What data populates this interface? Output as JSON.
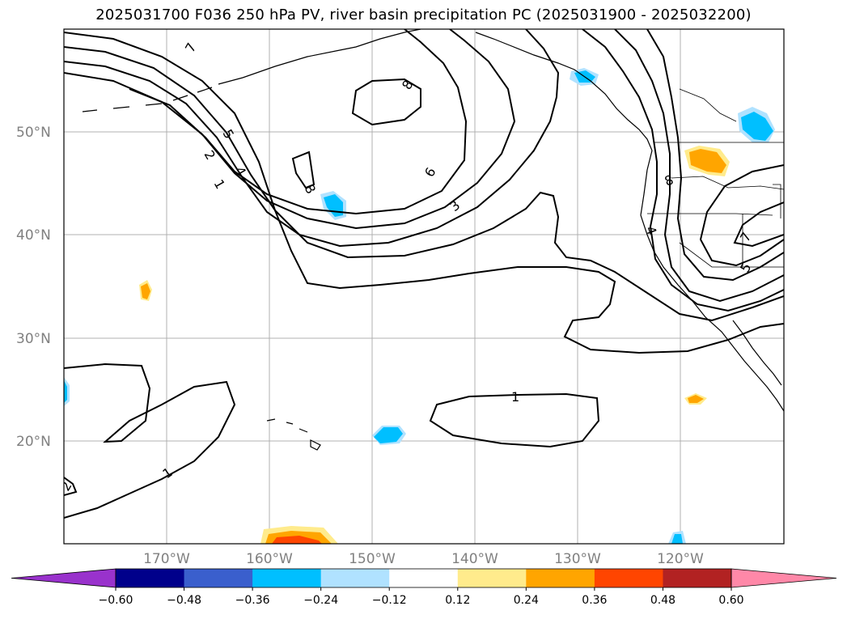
{
  "title": "2025031700 F036 250 hPa PV, river basin precipitation PC (2025031900 - 2025032200)",
  "map": {
    "region": "North Pacific / western North America",
    "lon_range": [
      -180,
      -110
    ],
    "lat_range": [
      10,
      60
    ],
    "lat_ticks": [
      "50°N",
      "40°N",
      "30°N",
      "20°N"
    ],
    "lon_ticks": [
      "170°W",
      "160°W",
      "150°W",
      "140°W",
      "130°W",
      "120°W"
    ],
    "contour_labels": [
      "7",
      "5",
      "2",
      "4",
      "1",
      "8",
      "8",
      "6",
      "3",
      "8",
      "4",
      "7",
      "5",
      "1",
      "1",
      "2"
    ]
  },
  "colorbar": {
    "ticks": [
      "−0.60",
      "−0.48",
      "−0.36",
      "−0.24",
      "−0.12",
      "0.12",
      "0.24",
      "0.36",
      "0.48",
      "0.60"
    ],
    "colors": [
      "#9932cc",
      "#00008b",
      "#3a5fcd",
      "#00bfff",
      "#b0e2ff",
      "#ffffff",
      "#ffeb8c",
      "#ffa500",
      "#ff4500",
      "#b22222",
      "#ff88a8"
    ]
  }
}
